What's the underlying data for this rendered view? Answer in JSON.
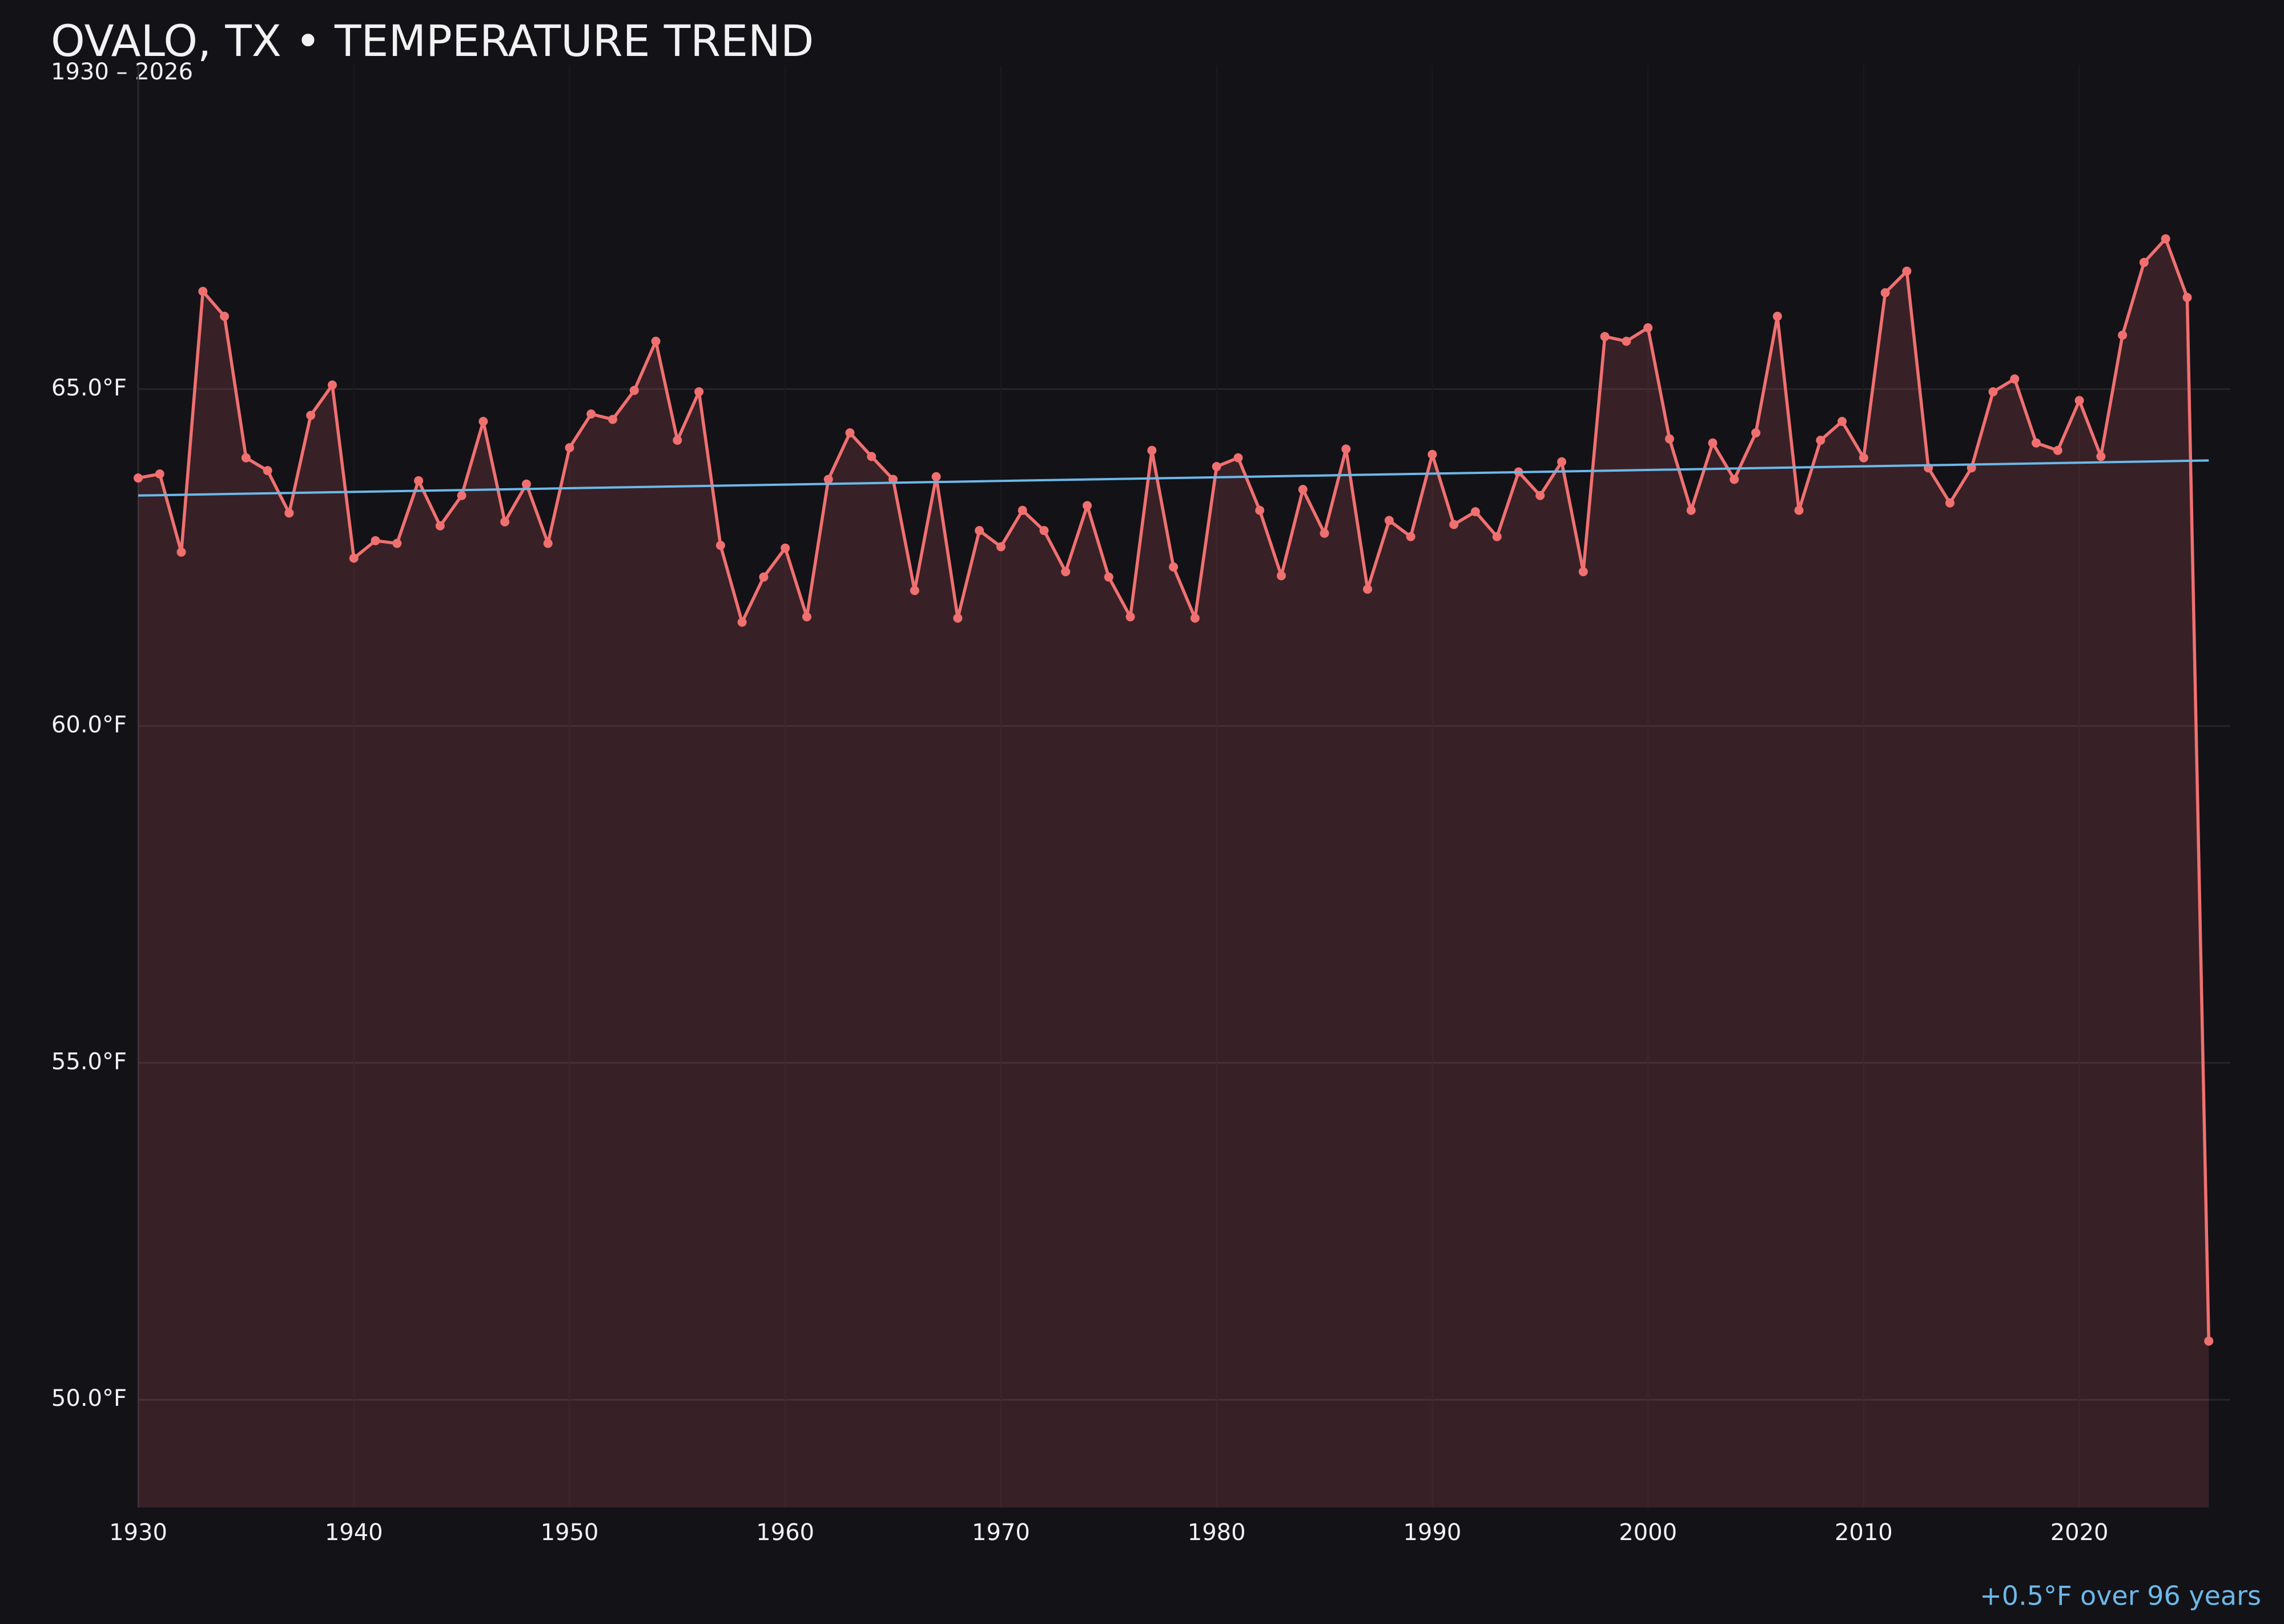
{
  "chart_data": {
    "type": "line",
    "title": "OVALO, TX • TEMPERATURE TREND",
    "subtitle": "1930 – 2026",
    "annotation": "+0.5°F over 96 years",
    "x": [
      1930,
      1931,
      1932,
      1933,
      1934,
      1935,
      1936,
      1937,
      1938,
      1939,
      1940,
      1941,
      1942,
      1943,
      1944,
      1945,
      1946,
      1947,
      1948,
      1949,
      1950,
      1951,
      1952,
      1953,
      1954,
      1955,
      1956,
      1957,
      1958,
      1959,
      1960,
      1961,
      1962,
      1963,
      1964,
      1965,
      1966,
      1967,
      1968,
      1969,
      1970,
      1971,
      1972,
      1973,
      1974,
      1975,
      1976,
      1977,
      1978,
      1979,
      1980,
      1981,
      1982,
      1983,
      1984,
      1985,
      1986,
      1987,
      1988,
      1989,
      1990,
      1991,
      1992,
      1993,
      1994,
      1995,
      1996,
      1997,
      1998,
      1999,
      2000,
      2001,
      2002,
      2003,
      2004,
      2005,
      2006,
      2007,
      2008,
      2009,
      2010,
      2011,
      2012,
      2013,
      2014,
      2015,
      2016,
      2017,
      2018,
      2019,
      2020,
      2021,
      2022,
      2023,
      2024,
      2025,
      2026
    ],
    "series": [
      {
        "color": "#f07070",
        "values": [
          63.68,
          63.74,
          62.58,
          66.45,
          66.08,
          63.98,
          63.79,
          63.16,
          64.61,
          65.06,
          62.49,
          62.75,
          62.71,
          63.64,
          62.97,
          63.42,
          64.52,
          63.03,
          63.59,
          62.71,
          64.13,
          64.63,
          64.55,
          64.98,
          65.71,
          64.24,
          64.96,
          62.68,
          61.54,
          62.21,
          62.64,
          61.62,
          63.66,
          64.35,
          64.0,
          63.66,
          62.01,
          63.7,
          61.6,
          62.9,
          62.66,
          63.2,
          62.9,
          62.29,
          63.27,
          62.21,
          61.62,
          64.09,
          62.36,
          61.6,
          63.85,
          63.98,
          63.2,
          62.23,
          63.51,
          62.86,
          64.11,
          62.03,
          63.05,
          62.81,
          64.03,
          62.99,
          63.18,
          62.81,
          63.77,
          63.42,
          63.92,
          62.29,
          65.78,
          65.71,
          65.91,
          64.26,
          63.2,
          64.2,
          63.66,
          64.35,
          66.08,
          63.2,
          64.24,
          64.52,
          63.98,
          66.43,
          66.75,
          63.83,
          63.31,
          63.83,
          64.96,
          65.15,
          64.2,
          64.09,
          64.83,
          64.0,
          65.8,
          66.88,
          67.23,
          66.36,
          50.87
        ]
      }
    ],
    "trend": {
      "color": "#6cb8e8",
      "x": [
        1930,
        2026
      ],
      "values": [
        63.42,
        63.94
      ]
    },
    "xlim": [
      1930,
      2027
    ],
    "ylim": [
      48.4,
      69.8
    ],
    "xticks": [
      1930,
      1940,
      1950,
      1960,
      1970,
      1980,
      1990,
      2000,
      2010,
      2020
    ],
    "yticks": [
      {
        "value": 50,
        "label": "50.0°F"
      },
      {
        "value": 55,
        "label": "55.0°F"
      },
      {
        "value": 60,
        "label": "60.0°F"
      },
      {
        "value": 65,
        "label": "65.0°F"
      }
    ],
    "grid": true
  }
}
